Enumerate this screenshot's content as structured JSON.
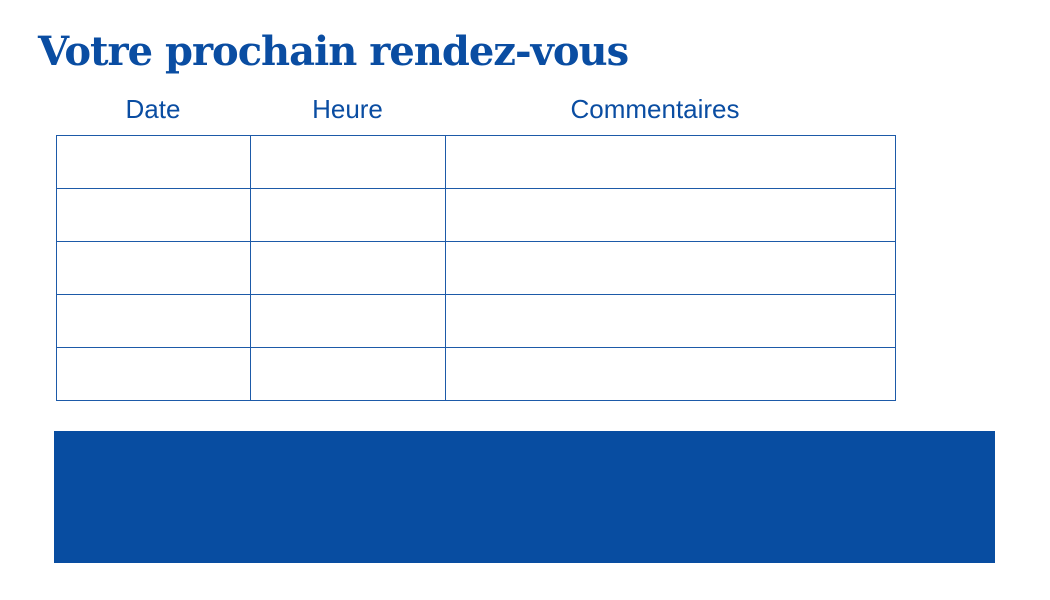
{
  "title": "Votre prochain rendez-vous",
  "table": {
    "headers": [
      "Date",
      "Heure",
      "Commentaires"
    ],
    "rows": [
      [
        "",
        "",
        ""
      ],
      [
        "",
        "",
        ""
      ],
      [
        "",
        "",
        ""
      ],
      [
        "",
        "",
        ""
      ],
      [
        "",
        "",
        ""
      ]
    ]
  },
  "colors": {
    "accent": "#084da1"
  }
}
